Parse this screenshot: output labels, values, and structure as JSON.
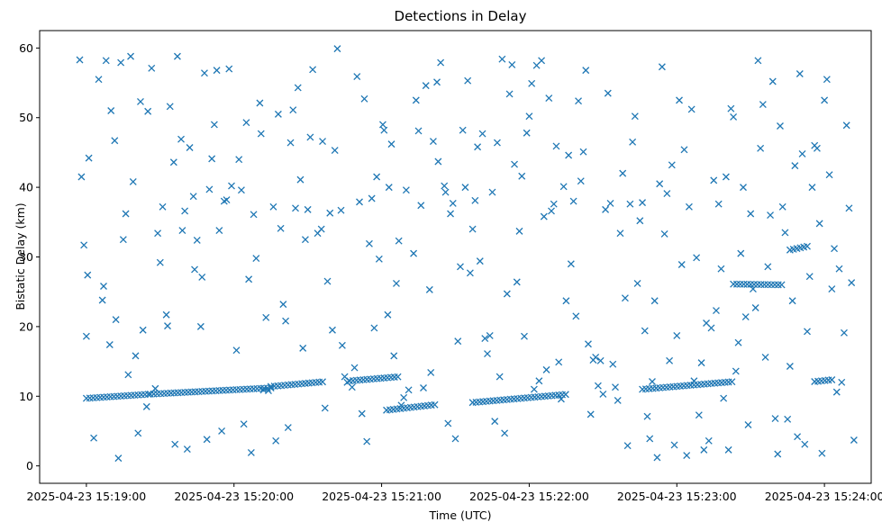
{
  "chart_data": {
    "type": "scatter",
    "title": "Detections in Delay",
    "xlabel": "Time (UTC)",
    "ylabel": "Bistatic Delay (km)",
    "marker": "x",
    "color": "#1f77b4",
    "grid": false,
    "x_unit": "seconds after 2025-04-23 15:19:00 UTC",
    "xlim": [
      -19,
      319
    ],
    "ylim": [
      -2.5,
      62.5
    ],
    "xticks": [
      0,
      60,
      120,
      180,
      240,
      300
    ],
    "xtick_labels": [
      "2025-04-23 15:19:00",
      "2025-04-23 15:20:00",
      "2025-04-23 15:21:00",
      "2025-04-23 15:22:00",
      "2025-04-23 15:23:00",
      "2025-04-23 15:24:00"
    ],
    "yticks": [
      0,
      10,
      20,
      30,
      40,
      50,
      60
    ],
    "ytick_labels": [
      "0",
      "10",
      "20",
      "30",
      "40",
      "50",
      "60"
    ],
    "tracks": [
      {
        "x_start": 0,
        "x_end": 26,
        "y_start": 9.7,
        "y_end": 10.3
      },
      {
        "x_start": 26,
        "x_end": 75,
        "y_start": 10.3,
        "y_end": 11.2
      },
      {
        "x_start": 75,
        "x_end": 97,
        "y_start": 11.4,
        "y_end": 12.1
      },
      {
        "x_start": 107,
        "x_end": 127,
        "y_start": 12.2,
        "y_end": 12.8
      },
      {
        "x_start": 122,
        "x_end": 142,
        "y_start": 8.0,
        "y_end": 8.8
      },
      {
        "x_start": 157,
        "x_end": 196,
        "y_start": 9.1,
        "y_end": 10.3
      },
      {
        "x_start": 226,
        "x_end": 263,
        "y_start": 11.0,
        "y_end": 12.1
      },
      {
        "x_start": 263,
        "x_end": 283,
        "y_start": 26.1,
        "y_end": 26.0
      },
      {
        "x_start": 286,
        "x_end": 294,
        "y_start": 31.0,
        "y_end": 31.6
      },
      {
        "x_start": 296,
        "x_end": 304,
        "y_start": 12.1,
        "y_end": 12.4
      }
    ],
    "x": [
      -2.7,
      -2.0,
      -1.0,
      0.0,
      0.5,
      1.0,
      3.0,
      5.0,
      6.5,
      7.0,
      8.0,
      9.5,
      10.0,
      11.5,
      12.0,
      13.0,
      14.0,
      15.0,
      16.0,
      17.0,
      18.0,
      19.0,
      20.0,
      21.0,
      22.0,
      23.0,
      24.5,
      25.0,
      26.5,
      28.0,
      29.0,
      30.0,
      31.0,
      32.5,
      33.0,
      34.0,
      35.5,
      36.0,
      37.0,
      38.5,
      39.0,
      40.0,
      41.0,
      42.0,
      43.5,
      44.0,
      45.0,
      46.5,
      47.0,
      48.0,
      49.0,
      50.0,
      51.0,
      52.0,
      53.0,
      54.0,
      55.0,
      56.0,
      57.0,
      58.0,
      59.0,
      61.0,
      62.0,
      63.0,
      64.0,
      65.0,
      66.0,
      67.0,
      68.0,
      69.0,
      70.5,
      71.0,
      72.0,
      73.0,
      74.0,
      76.0,
      77.0,
      78.0,
      79.0,
      80.0,
      81.0,
      82.0,
      83.0,
      84.0,
      85.0,
      86.0,
      87.0,
      88.0,
      89.0,
      90.0,
      91.0,
      92.0,
      94.0,
      95.5,
      96.0,
      97.0,
      98.0,
      99.0,
      100.0,
      101.0,
      102.0,
      103.5,
      104.0,
      105.0,
      106.0,
      108.0,
      109.0,
      110.0,
      111.0,
      112.0,
      113.0,
      114.0,
      115.0,
      116.0,
      117.0,
      118.0,
      119.0,
      120.5,
      121.0,
      122.5,
      123.0,
      124.0,
      125.0,
      126.0,
      127.0,
      128.0,
      129.0,
      130.0,
      131.0,
      133.0,
      134.0,
      135.0,
      136.0,
      137.0,
      138.0,
      139.5,
      140.0,
      141.0,
      142.5,
      143.0,
      144.0,
      145.5,
      146.0,
      147.0,
      148.0,
      149.0,
      150.0,
      151.0,
      152.0,
      153.0,
      154.0,
      155.0,
      156.0,
      157.0,
      158.0,
      159.0,
      160.0,
      161.0,
      162.0,
      163.0,
      164.0,
      165.0,
      166.0,
      167.0,
      168.0,
      169.0,
      170.0,
      171.0,
      172.0,
      173.0,
      174.0,
      175.0,
      176.0,
      177.0,
      178.0,
      179.0,
      180.0,
      181.0,
      182.0,
      183.0,
      184.0,
      185.0,
      186.0,
      187.0,
      188.0,
      189.0,
      190.0,
      191.0,
      192.0,
      193.0,
      194.0,
      195.0,
      196.0,
      197.0,
      198.0,
      199.0,
      200.0,
      201.0,
      202.0,
      203.0,
      204.0,
      205.0,
      206.0,
      207.0,
      208.0,
      209.0,
      210.0,
      211.0,
      212.0,
      213.0,
      214.0,
      215.0,
      216.0,
      217.0,
      218.0,
      219.0,
      220.0,
      221.0,
      222.0,
      223.0,
      224.0,
      225.0,
      226.0,
      227.0,
      228.0,
      229.0,
      230.0,
      231.0,
      232.0,
      233.0,
      234.0,
      235.0,
      236.0,
      237.0,
      238.0,
      239.0,
      240.0,
      241.0,
      242.0,
      243.0,
      244.0,
      245.0,
      246.0,
      247.0,
      248.0,
      249.0,
      250.0,
      251.0,
      252.0,
      253.0,
      254.0,
      255.0,
      256.0,
      257.0,
      258.0,
      259.0,
      260.0,
      261.0,
      262.0,
      263.0,
      264.0,
      265.0,
      266.0,
      267.0,
      268.0,
      269.0,
      270.0,
      271.0,
      272.0,
      273.0,
      274.0,
      275.0,
      276.0,
      277.0,
      278.0,
      279.0,
      280.0,
      281.0,
      282.0,
      283.0,
      284.0,
      285.0,
      286.0,
      287.0,
      288.0,
      289.0,
      290.0,
      291.0,
      292.0,
      293.0,
      294.0,
      295.0,
      296.0,
      297.0,
      298.0,
      299.0,
      300.0,
      301.0,
      302.0,
      303.0,
      304.0,
      305.0,
      306.0,
      307.0,
      308.0,
      309.0,
      310.0,
      311.0,
      312.0
    ],
    "y": [
      58.3,
      41.5,
      31.7,
      18.6,
      27.4,
      44.2,
      4.0,
      55.5,
      23.8,
      25.8,
      58.2,
      17.4,
      51.0,
      46.7,
      21.0,
      1.1,
      57.9,
      32.5,
      36.2,
      13.1,
      58.8,
      40.8,
      15.8,
      4.7,
      52.3,
      19.5,
      8.5,
      50.9,
      57.1,
      11.1,
      33.4,
      29.2,
      37.2,
      21.7,
      20.1,
      51.6,
      43.6,
      3.1,
      58.8,
      46.9,
      33.8,
      36.6,
      2.4,
      45.7,
      38.7,
      28.2,
      32.4,
      20.0,
      27.1,
      56.4,
      3.8,
      39.7,
      44.1,
      49.0,
      56.8,
      33.8,
      5.0,
      38.0,
      38.2,
      57.0,
      40.2,
      16.6,
      44.0,
      39.6,
      6.0,
      49.3,
      26.8,
      1.9,
      36.1,
      29.8,
      52.1,
      47.7,
      10.9,
      21.3,
      10.8,
      37.2,
      3.6,
      50.5,
      34.1,
      23.2,
      20.8,
      5.5,
      46.4,
      51.1,
      37.0,
      54.3,
      41.1,
      16.9,
      32.5,
      36.8,
      47.2,
      56.9,
      33.4,
      34.0,
      46.6,
      8.3,
      26.5,
      36.3,
      19.5,
      45.3,
      59.9,
      36.7,
      17.3,
      12.8,
      12.0,
      11.3,
      14.1,
      55.9,
      37.9,
      7.5,
      52.7,
      3.5,
      31.9,
      38.4,
      19.8,
      41.5,
      29.7,
      49.0,
      48.2,
      21.7,
      40.0,
      46.2,
      15.8,
      26.2,
      32.3,
      8.7,
      9.8,
      39.6,
      10.9,
      30.5,
      52.5,
      48.1,
      37.4,
      11.2,
      54.6,
      25.3,
      13.4,
      46.6,
      55.1,
      43.7,
      57.9,
      40.2,
      39.3,
      6.1,
      36.2,
      37.7,
      3.9,
      17.9,
      28.6,
      48.2,
      40.0,
      55.3,
      27.7,
      34.0,
      38.1,
      45.8,
      29.4,
      47.7,
      18.3,
      16.1,
      18.7,
      39.3,
      6.4,
      46.4,
      12.8,
      58.4,
      4.7,
      24.7,
      53.4,
      57.6,
      43.3,
      26.4,
      33.7,
      41.6,
      18.6,
      47.8,
      50.2,
      54.9,
      11.0,
      57.5,
      12.2,
      58.2,
      35.8,
      13.8,
      52.8,
      36.6,
      37.6,
      45.9,
      14.9,
      9.6,
      40.1,
      23.7,
      44.6,
      29.0,
      38.0,
      21.5,
      52.4,
      40.9,
      45.1,
      56.8,
      17.5,
      7.4,
      15.2,
      15.6,
      11.5,
      15.1,
      10.3,
      36.8,
      53.5,
      37.7,
      14.6,
      11.3,
      9.4,
      33.4,
      42.0,
      24.1,
      2.9,
      37.6,
      46.5,
      50.2,
      26.2,
      35.2,
      37.8,
      19.4,
      7.1,
      3.9,
      12.1,
      23.7,
      1.2,
      40.5,
      57.3,
      33.3,
      39.1,
      15.1,
      43.2,
      3.0,
      18.7,
      52.5,
      28.9,
      45.4,
      1.5,
      37.2,
      51.2,
      12.2,
      29.9,
      7.3,
      14.8,
      2.3,
      20.5,
      3.6,
      19.8,
      41.0,
      22.3,
      37.6,
      28.3,
      9.7,
      41.5,
      2.3,
      51.3,
      50.1,
      13.6,
      17.7,
      30.5,
      40.0,
      21.4,
      5.9,
      36.2,
      25.4,
      22.7,
      58.2,
      45.6,
      51.9,
      15.6,
      28.6,
      36.0,
      55.2,
      6.8,
      1.7,
      48.8,
      37.2,
      33.5,
      6.7,
      14.3,
      23.7,
      43.1,
      4.2,
      56.3,
      44.8,
      3.1,
      19.3,
      27.2,
      40.0,
      46.0,
      45.6,
      34.8,
      1.8,
      52.5,
      55.5,
      41.8,
      25.4,
      31.2,
      10.6,
      28.3,
      12.0,
      19.1,
      48.9,
      37.0,
      26.3,
      3.7
    ]
  }
}
